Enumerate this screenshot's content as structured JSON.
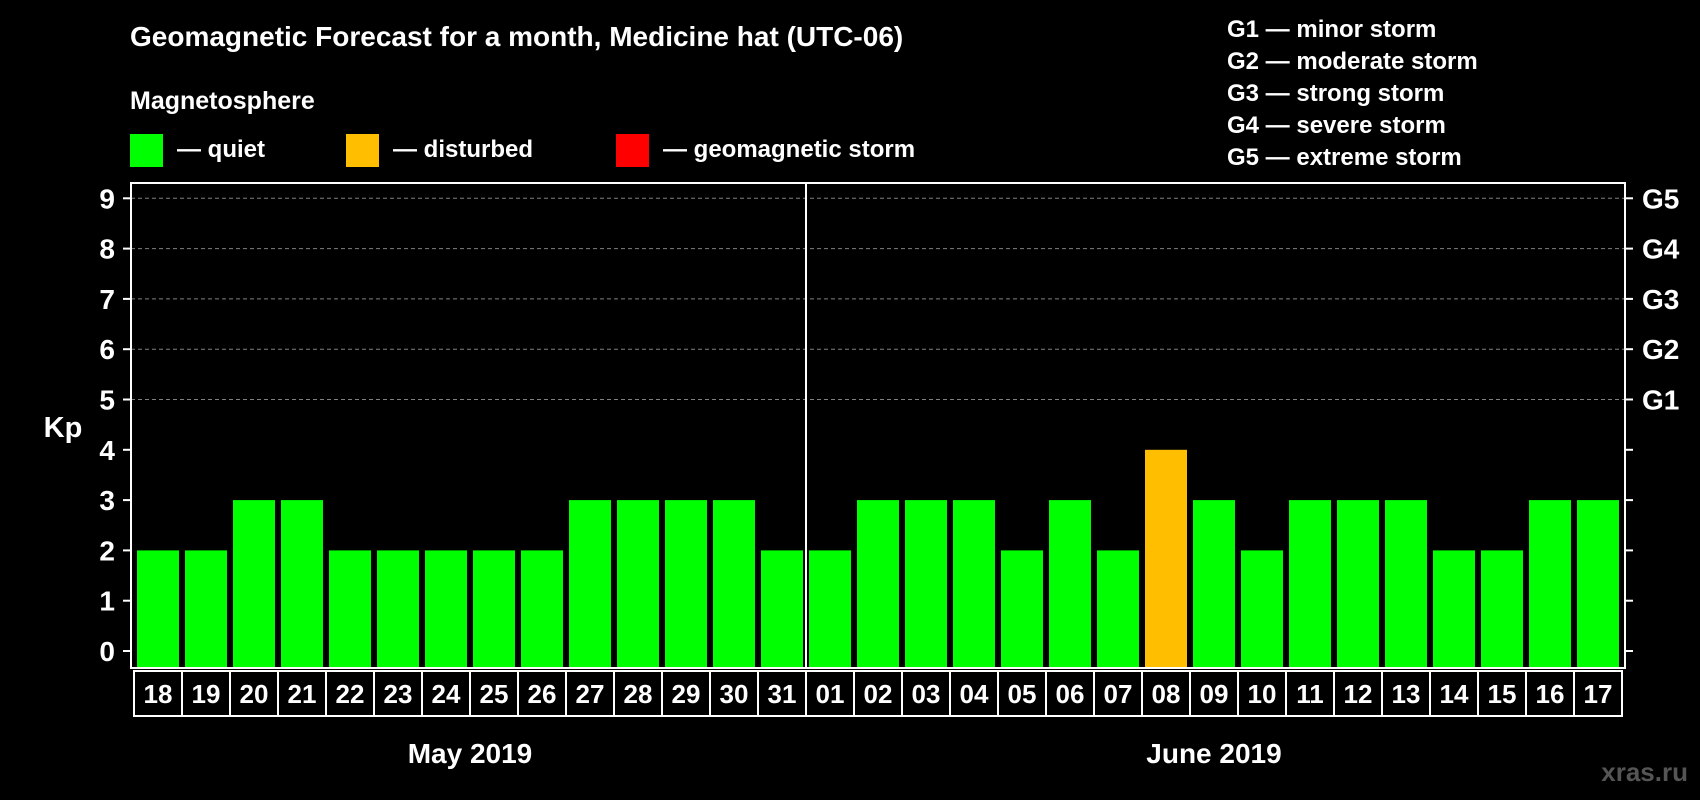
{
  "chart_data": {
    "type": "bar",
    "title": "Geomagnetic Forecast for a month, Medicine hat (UTC-06)",
    "subtitle": "Magnetosphere",
    "ylabel": "Kp",
    "ylim": [
      0,
      9
    ],
    "yticks": [
      "0",
      "1",
      "2",
      "3",
      "4",
      "5",
      "6",
      "7",
      "8",
      "9"
    ],
    "storm_levels": [
      {
        "kp": 5,
        "label": "G1"
      },
      {
        "kp": 6,
        "label": "G2"
      },
      {
        "kp": 7,
        "label": "G3"
      },
      {
        "kp": 8,
        "label": "G4"
      },
      {
        "kp": 9,
        "label": "G5"
      }
    ],
    "legend": [
      {
        "label": "— quiet",
        "color": "#00ff00"
      },
      {
        "label": "— disturbed",
        "color": "#ffbf00"
      },
      {
        "label": "— geomagnetic storm",
        "color": "#ff0000"
      }
    ],
    "storm_scale": [
      "G1 — minor storm",
      "G2 — moderate storm",
      "G3 — strong storm",
      "G4 — severe storm",
      "G5 — extreme storm"
    ],
    "categories": [
      "18",
      "19",
      "20",
      "21",
      "22",
      "23",
      "24",
      "25",
      "26",
      "27",
      "28",
      "29",
      "30",
      "31",
      "01",
      "02",
      "03",
      "04",
      "05",
      "06",
      "07",
      "08",
      "09",
      "10",
      "11",
      "12",
      "13",
      "14",
      "15",
      "16",
      "17"
    ],
    "values": [
      2,
      2,
      3,
      3,
      2,
      2,
      2,
      2,
      2,
      3,
      3,
      3,
      3,
      2,
      2,
      3,
      3,
      3,
      2,
      3,
      2,
      4,
      3,
      2,
      3,
      3,
      3,
      2,
      2,
      3,
      3
    ],
    "months": [
      {
        "label": "May 2019",
        "start": 0,
        "count": 14
      },
      {
        "label": "June 2019",
        "start": 14,
        "count": 17
      }
    ],
    "grid": true
  },
  "colors": {
    "quiet": "#00ff00",
    "disturbed": "#ffbf00",
    "storm": "#ff0000",
    "background": "#000000",
    "foreground": "#ffffff",
    "grid": "#808080",
    "watermark": "#555555"
  },
  "watermark": "xras.ru"
}
